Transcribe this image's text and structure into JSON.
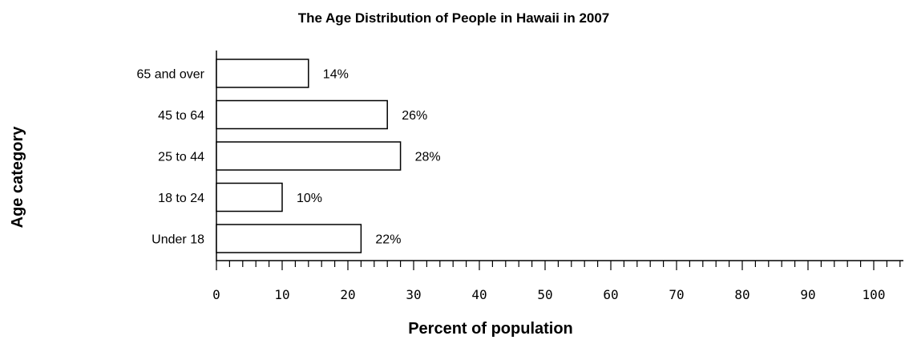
{
  "chart_data": {
    "type": "bar",
    "orientation": "horizontal",
    "title": "The Age Distribution of People in Hawaii in 2007",
    "xlabel": "Percent of population",
    "ylabel": "Age category",
    "categories": [
      "65 and over",
      "45 to 64",
      "25 to 44",
      "18 to 24",
      "Under 18"
    ],
    "values": [
      14,
      26,
      28,
      10,
      22
    ],
    "data_labels": [
      "14%",
      "26%",
      "28%",
      "10%",
      "22%"
    ],
    "xlim": [
      0,
      105
    ],
    "x_ticks": [
      0,
      10,
      20,
      30,
      40,
      50,
      60,
      70,
      80,
      90,
      100
    ],
    "x_minor_step": 2,
    "grid": false,
    "legend": "none"
  }
}
